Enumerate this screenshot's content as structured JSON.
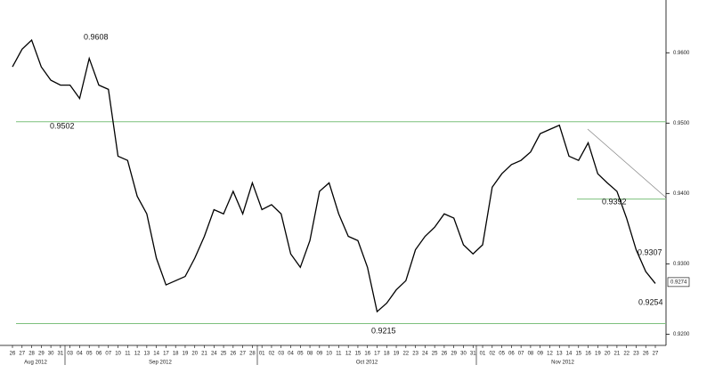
{
  "chart_data": {
    "type": "line",
    "categories": [
      "26",
      "27",
      "28",
      "29",
      "30",
      "31",
      "03",
      "04",
      "05",
      "06",
      "07",
      "10",
      "11",
      "12",
      "13",
      "14",
      "17",
      "18",
      "19",
      "20",
      "21",
      "24",
      "25",
      "26",
      "27",
      "28",
      "01",
      "02",
      "03",
      "04",
      "05",
      "08",
      "09",
      "10",
      "11",
      "12",
      "15",
      "16",
      "17",
      "18",
      "19",
      "22",
      "23",
      "24",
      "25",
      "26",
      "29",
      "30",
      "31",
      "01",
      "02",
      "05",
      "06",
      "07",
      "08",
      "09",
      "12",
      "13",
      "14",
      "15",
      "16",
      "19",
      "20",
      "21",
      "22",
      "23",
      "26",
      "27"
    ],
    "months": [
      "Aug 2012",
      "Sep 2012",
      "Oct 2012",
      "Nov 2012"
    ],
    "series": [
      {
        "color": "#000000",
        "values": [
          0.958,
          0.9605,
          0.9618,
          0.958,
          0.9561,
          0.9554,
          0.9554,
          0.9535,
          0.9592,
          0.9554,
          0.9548,
          0.9453,
          0.9447,
          0.9396,
          0.9371,
          0.9308,
          0.927,
          0.9276,
          0.9282,
          0.9308,
          0.9339,
          0.9377,
          0.9371,
          0.9403,
          0.9371,
          0.9415,
          0.9377,
          0.9384,
          0.9371,
          0.9314,
          0.9295,
          0.9333,
          0.9403,
          0.9415,
          0.9371,
          0.9339,
          0.9333,
          0.9295,
          0.9232,
          0.9244,
          0.9263,
          0.9276,
          0.932,
          0.9339,
          0.9352,
          0.9371,
          0.9365,
          0.9327,
          0.9314,
          0.9327,
          0.9409,
          0.9428,
          0.9441,
          0.9447,
          0.9459,
          0.9485,
          0.9491,
          0.9497,
          0.9453,
          0.9447,
          0.9472,
          0.9428,
          0.9415,
          0.9403,
          0.9365,
          0.932,
          0.9289,
          0.9272
        ]
      }
    ],
    "ylim": [
      0.9184,
      0.9675
    ],
    "yticks": [
      {
        "value": 0.92,
        "label": "0.9200"
      },
      {
        "value": 0.93,
        "label": "0.9300"
      },
      {
        "value": 0.94,
        "label": "0.9400"
      },
      {
        "value": 0.95,
        "label": "0.9500"
      },
      {
        "value": 0.96,
        "label": "0.9600"
      }
    ],
    "reference_lines": [
      {
        "value": 0.9502,
        "color": "#7dc07d"
      },
      {
        "value": 0.9215,
        "color": "#7dc07d"
      },
      {
        "value": 0.9392,
        "color": "#7dc07d"
      }
    ],
    "annotations": [
      "0.9608",
      "0.9502",
      "0.9215",
      "0.9392",
      "0.9307",
      "0.9254"
    ],
    "price_tag": {
      "value": 0.9274,
      "label": "0.9274"
    }
  }
}
